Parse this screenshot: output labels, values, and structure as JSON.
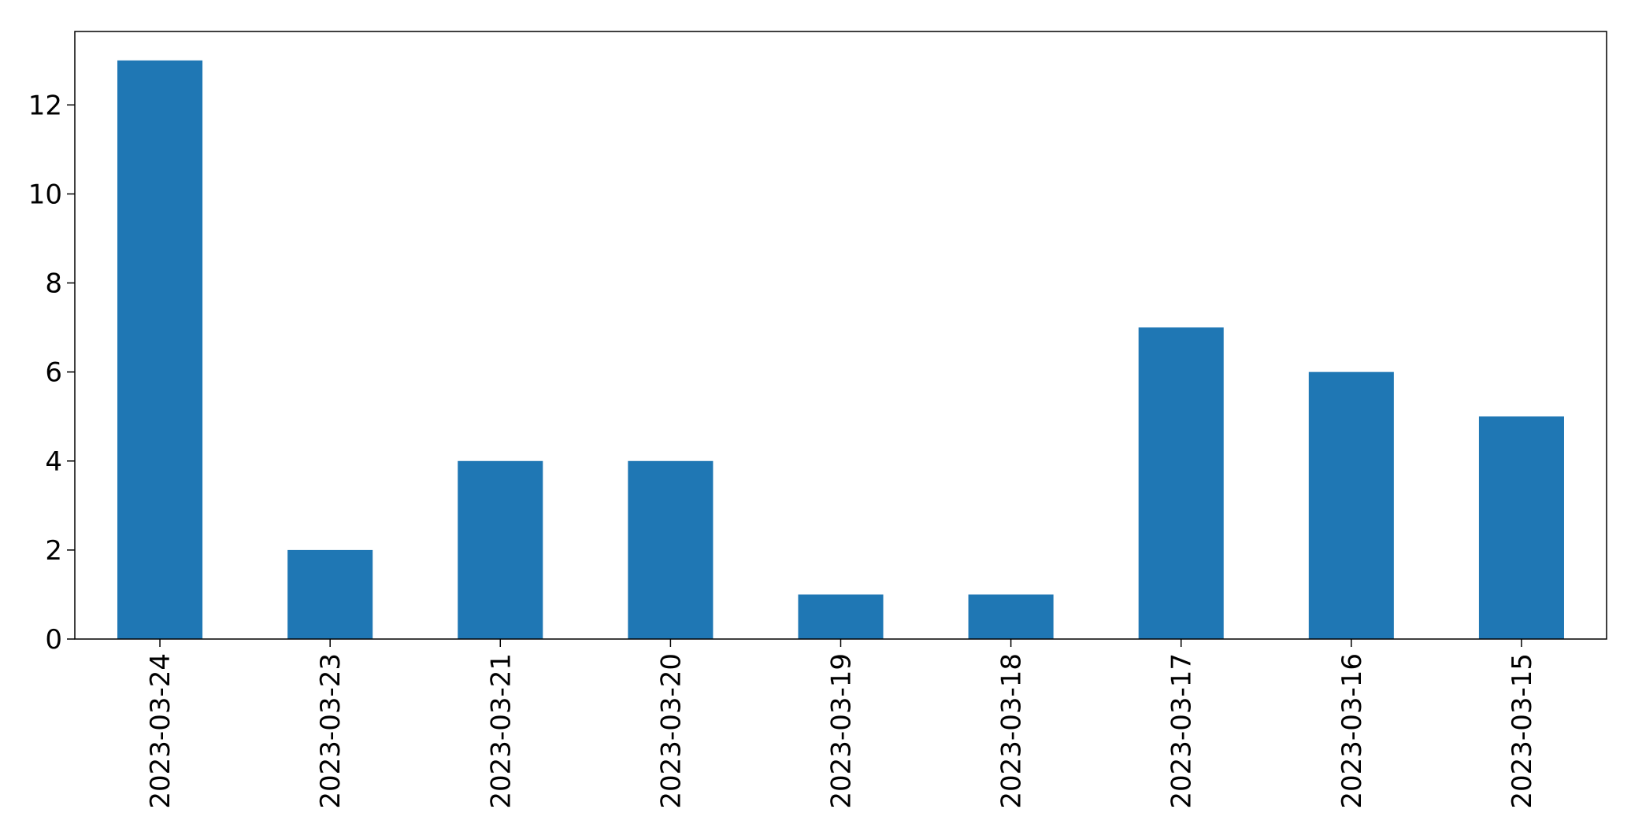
{
  "chart_data": {
    "type": "bar",
    "categories": [
      "2023-03-24",
      "2023-03-23",
      "2023-03-21",
      "2023-03-20",
      "2023-03-19",
      "2023-03-18",
      "2023-03-17",
      "2023-03-16",
      "2023-03-15"
    ],
    "values": [
      13,
      2,
      4,
      4,
      1,
      1,
      7,
      6,
      5
    ],
    "title": "",
    "xlabel": "",
    "ylabel": "",
    "ylim": [
      0,
      13.65
    ],
    "yticks": [
      0,
      2,
      4,
      6,
      8,
      10,
      12
    ],
    "grid": false,
    "legend": "none",
    "bar_color": "#1f77b4"
  }
}
